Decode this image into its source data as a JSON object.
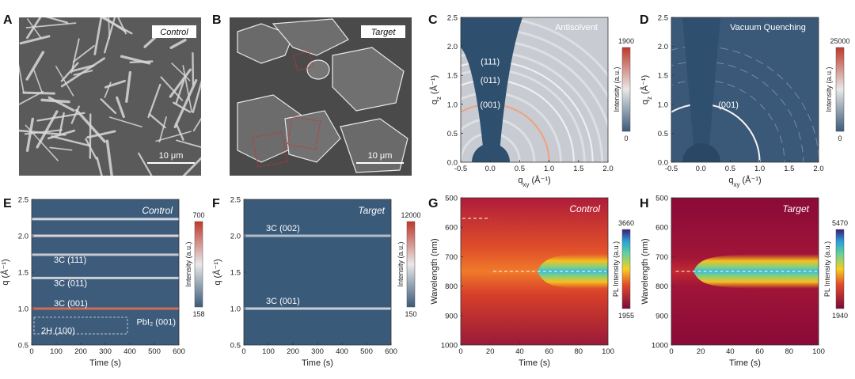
{
  "panels": {
    "A": {
      "letter": "A",
      "tag": "Control",
      "scalebar": "10 μm"
    },
    "B": {
      "letter": "B",
      "tag": "Target",
      "scalebar": "10 μm"
    },
    "C": {
      "letter": "C",
      "title": "Antisolvent",
      "peaks": [
        "(111)",
        "(011)",
        "(001)"
      ],
      "cbar_max": "1900",
      "cbar_min": "0",
      "cbar_label": "Intensity (a.u.)"
    },
    "D": {
      "letter": "D",
      "title": "Vacuum Quenching",
      "peaks": [
        "(001)"
      ],
      "cbar_max": "25000",
      "cbar_min": "0",
      "cbar_label": "Intensity (a.u.)"
    },
    "E": {
      "letter": "E",
      "tag": "Control",
      "peaks": [
        "3C (111)",
        "3C (011)",
        "3C (001)",
        "2H (100)",
        "PbI₂ (001)"
      ],
      "cbar_max": "700",
      "cbar_min": "158",
      "cbar_label": "Intensity (a.u.)"
    },
    "F": {
      "letter": "F",
      "tag": "Target",
      "peaks": [
        "3C (002)",
        "3C (001)"
      ],
      "cbar_max": "12000",
      "cbar_min": "150",
      "cbar_label": "Intensity (a.u.)"
    },
    "G": {
      "letter": "G",
      "tag": "Control",
      "cbar_max": "3660",
      "cbar_min": "1955",
      "cbar_label": "PL Intensity (a.u.)"
    },
    "H": {
      "letter": "H",
      "tag": "Target",
      "cbar_max": "5470",
      "cbar_min": "1940",
      "cbar_label": "PL Intensity (a.u.)"
    }
  },
  "axes": {
    "qxy_label": "q",
    "qxy_sub": "xy",
    "qxy_unit": " (Å⁻¹)",
    "qz_label": "q",
    "qz_sub": "z",
    "qz_unit": " (Å⁻¹)",
    "q_label": "q (Å⁻¹)",
    "time_label": "Time (s)",
    "wavelength_label": "Wavelength (nm)"
  },
  "chart_data": [
    {
      "type": "heatmap",
      "panel": "C",
      "x_label": "qxy (Å⁻¹)",
      "y_label": "qz (Å⁻¹)",
      "xlim": [
        -0.5,
        2.0
      ],
      "ylim": [
        0.0,
        2.5
      ],
      "xticks": [
        "-0.5",
        "0.0",
        "0.5",
        "1.0",
        "1.5",
        "2.0"
      ],
      "yticks": [
        "0.0",
        "0.5",
        "1.0",
        "1.5",
        "2.0",
        "2.5"
      ],
      "rings_q": [
        1.0,
        1.42,
        1.74
      ],
      "cbar": [
        0,
        1900
      ]
    },
    {
      "type": "heatmap",
      "panel": "D",
      "x_label": "qxy (Å⁻¹)",
      "y_label": "qz (Å⁻¹)",
      "xlim": [
        -0.5,
        2.0
      ],
      "ylim": [
        0.0,
        2.5
      ],
      "xticks": [
        "-0.5",
        "0.0",
        "0.5",
        "1.0",
        "1.5",
        "2.0"
      ],
      "yticks": [
        "0.0",
        "0.5",
        "1.0",
        "1.5",
        "2.0",
        "2.5"
      ],
      "rings_q": [
        1.0
      ],
      "cbar": [
        0,
        25000
      ]
    },
    {
      "type": "heatmap",
      "panel": "E",
      "x_label": "Time (s)",
      "y_label": "q (Å⁻¹)",
      "xlim": [
        0,
        600
      ],
      "ylim": [
        0.5,
        2.5
      ],
      "xticks": [
        "0",
        "100",
        "200",
        "300",
        "400",
        "500",
        "600"
      ],
      "yticks": [
        "0.5",
        "1.0",
        "1.5",
        "2.0",
        "2.5"
      ],
      "lines_q": [
        1.0,
        1.42,
        1.74,
        2.0,
        2.23
      ],
      "cbar": [
        158,
        700
      ]
    },
    {
      "type": "heatmap",
      "panel": "F",
      "x_label": "Time (s)",
      "y_label": "q (Å⁻¹)",
      "xlim": [
        0,
        600
      ],
      "ylim": [
        0.5,
        2.5
      ],
      "xticks": [
        "0",
        "100",
        "200",
        "300",
        "400",
        "500",
        "600"
      ],
      "yticks": [
        "0.5",
        "1.0",
        "1.5",
        "2.0",
        "2.5"
      ],
      "lines_q": [
        1.0,
        2.0
      ],
      "cbar": [
        150,
        12000
      ]
    },
    {
      "type": "heatmap",
      "panel": "G",
      "x_label": "Time (s)",
      "y_label": "Wavelength (nm)",
      "xlim": [
        0,
        100
      ],
      "ylim": [
        500,
        1000
      ],
      "xticks": [
        "0",
        "20",
        "40",
        "60",
        "80",
        "100"
      ],
      "yticks": [
        "500",
        "600",
        "700",
        "800",
        "900",
        "1000"
      ],
      "peak_nm": 750,
      "onset_s": 52,
      "early_peak_nm": 570,
      "cbar": [
        1955,
        3660
      ]
    },
    {
      "type": "heatmap",
      "panel": "H",
      "x_label": "Time (s)",
      "y_label": "Wavelength (nm)",
      "xlim": [
        0,
        100
      ],
      "ylim": [
        500,
        1000
      ],
      "xticks": [
        "0",
        "20",
        "40",
        "60",
        "80",
        "100"
      ],
      "yticks": [
        "500",
        "600",
        "700",
        "800",
        "900",
        "1000"
      ],
      "peak_nm": 750,
      "onset_s": 15,
      "cbar": [
        1940,
        5470
      ]
    }
  ]
}
